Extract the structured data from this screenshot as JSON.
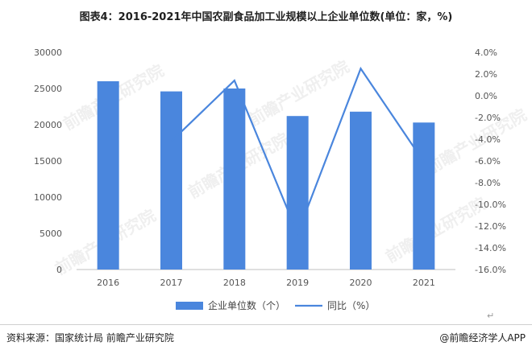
{
  "title": "图表4：2016-2021年中国农副食品加工业规模以上企业单位数(单位：家，%)",
  "source": "资料来源：国家统计局 前瞻产业研究院",
  "brand": "@前瞻经济学人APP",
  "watermark": "前瞻产业研究院",
  "return_mark": "↵",
  "colors": {
    "bar": "#4a86dd",
    "line": "#4a86dd",
    "axis": "#bfbfbf"
  },
  "chart_data": {
    "type": "bar",
    "categories": [
      "2016",
      "2017",
      "2018",
      "2019",
      "2020",
      "2021"
    ],
    "series": [
      {
        "name": "企业单位数（个）",
        "type": "bar",
        "axis": "left",
        "values": [
          26000,
          24600,
          25000,
          21200,
          21800,
          20300
        ]
      },
      {
        "name": "同比（%）",
        "type": "line",
        "axis": "right",
        "values": [
          null,
          -4.2,
          1.4,
          -12.7,
          2.5,
          -6.1
        ]
      }
    ],
    "y_left": {
      "min": 0,
      "max": 30000,
      "ticks": [
        "0",
        "5000",
        "10000",
        "15000",
        "20000",
        "25000",
        "30000"
      ]
    },
    "y_right": {
      "min": -16,
      "max": 4,
      "ticks": [
        "-16.0%",
        "-14.0%",
        "-12.0%",
        "-10.0%",
        "-8.0%",
        "-6.0%",
        "-4.0%",
        "-2.0%",
        "0.0%",
        "2.0%",
        "4.0%"
      ]
    },
    "legend_position": "bottom",
    "grid": false
  }
}
